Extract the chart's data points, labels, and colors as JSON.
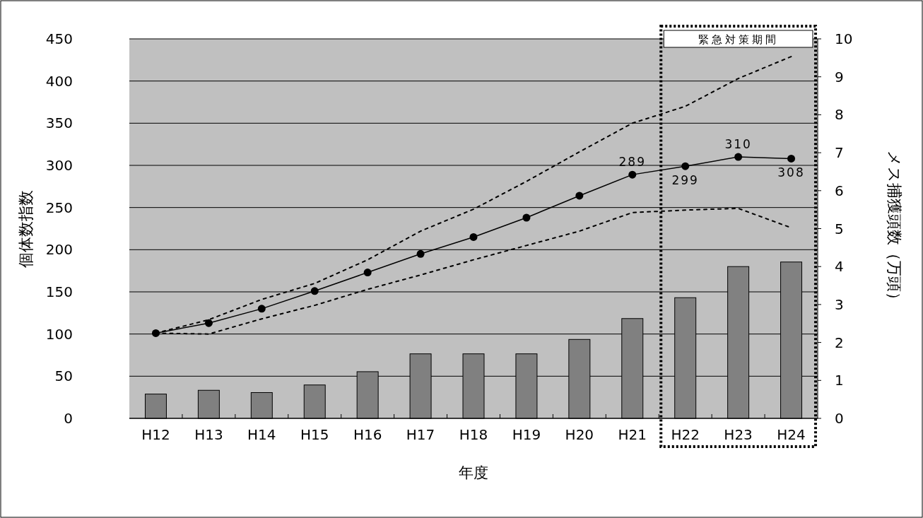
{
  "chart_data": {
    "type": "bar",
    "xlabel": "年度",
    "ylabel": "個体数指数",
    "y2label": "メス捕獲頭数（万頭）",
    "categories": [
      "H12",
      "H13",
      "H14",
      "H15",
      "H16",
      "H17",
      "H18",
      "H19",
      "H20",
      "H21",
      "H22",
      "H23",
      "H24"
    ],
    "series": [
      {
        "axis": "y2",
        "color": "#808080",
        "values": [
          0.64,
          0.74,
          0.68,
          0.88,
          1.23,
          1.7,
          1.7,
          1.7,
          2.08,
          2.63,
          3.18,
          4.0,
          4.12
        ]
      },
      {
        "type": "line",
        "color": "#000000",
        "marker": "circle",
        "line_style": "solid",
        "values": [
          101,
          113,
          130,
          151,
          173,
          195,
          215,
          238,
          264,
          289,
          299,
          310,
          308
        ],
        "value_labels": [
          null,
          null,
          null,
          null,
          null,
          null,
          null,
          null,
          null,
          "289",
          "299",
          "310",
          "308"
        ]
      },
      {
        "type": "line",
        "color": "#000000",
        "marker": "none",
        "line_style": "dashed",
        "values": [
          101,
          117,
          141,
          160,
          188,
          222,
          248,
          281,
          316,
          350,
          370,
          403,
          429
        ]
      },
      {
        "type": "line",
        "color": "#000000",
        "marker": "none",
        "line_style": "dashed",
        "values": [
          101,
          100,
          118,
          134,
          153,
          170,
          188,
          205,
          222,
          244,
          247,
          249,
          226
        ]
      }
    ],
    "ylim": [
      0,
      450
    ],
    "yticks": [
      0,
      50,
      100,
      150,
      200,
      250,
      300,
      350,
      400,
      450
    ],
    "y2lim": [
      0,
      10
    ],
    "y2ticks": [
      0,
      1,
      2,
      3,
      4,
      5,
      6,
      7,
      8,
      9,
      10
    ],
    "grid": "y",
    "bands": [
      {
        "axis": "x",
        "from": "H22",
        "to": "H24",
        "label": "緊急対策期間"
      }
    ]
  }
}
